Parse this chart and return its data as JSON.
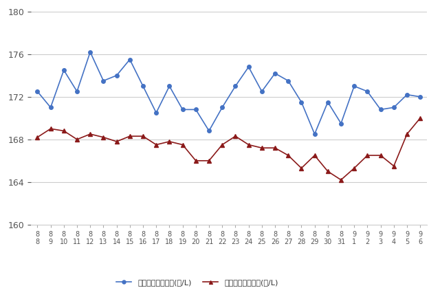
{
  "x_labels_top": [
    "8",
    "8",
    "8",
    "8",
    "8",
    "8",
    "8",
    "8",
    "8",
    "8",
    "8",
    "8",
    "8",
    "8",
    "8",
    "8",
    "8",
    "8",
    "8",
    "8",
    "8",
    "8",
    "8",
    "8",
    "9",
    "9",
    "9",
    "9",
    "9",
    "9"
  ],
  "x_labels_bottom": [
    "8",
    "9",
    "10",
    "11",
    "12",
    "13",
    "14",
    "15",
    "16",
    "17",
    "18",
    "19",
    "20",
    "21",
    "22",
    "23",
    "24",
    "25",
    "26",
    "27",
    "28",
    "29",
    "30",
    "31",
    "1",
    "2",
    "3",
    "4",
    "5",
    "6"
  ],
  "blue_values": [
    172.5,
    171.0,
    174.5,
    172.5,
    176.2,
    173.5,
    174.0,
    175.5,
    173.0,
    170.5,
    173.0,
    170.8,
    170.8,
    168.8,
    171.0,
    173.0,
    174.8,
    172.5,
    174.2,
    173.5,
    171.5,
    168.5,
    171.5,
    169.5,
    173.0,
    172.5,
    170.8,
    171.0,
    172.2,
    172.0
  ],
  "red_values": [
    168.2,
    169.0,
    168.8,
    168.0,
    168.5,
    168.2,
    167.8,
    168.3,
    168.3,
    167.5,
    167.8,
    167.5,
    166.0,
    166.0,
    167.5,
    168.3,
    167.5,
    167.2,
    167.2,
    166.5,
    165.3,
    166.5,
    165.0,
    164.2,
    165.3,
    166.5,
    166.5,
    165.5,
    168.5,
    170.0
  ],
  "blue_color": "#4472C4",
  "red_color": "#8B1A1A",
  "ylim_min": 160,
  "ylim_max": 180,
  "yticks": [
    160,
    164,
    168,
    172,
    176,
    180
  ],
  "legend_blue": "ハイオク看板価格(円/L)",
  "legend_red": "ハイオク実売価格(円/L)",
  "bg_color": "#ffffff",
  "grid_color": "#cccccc"
}
